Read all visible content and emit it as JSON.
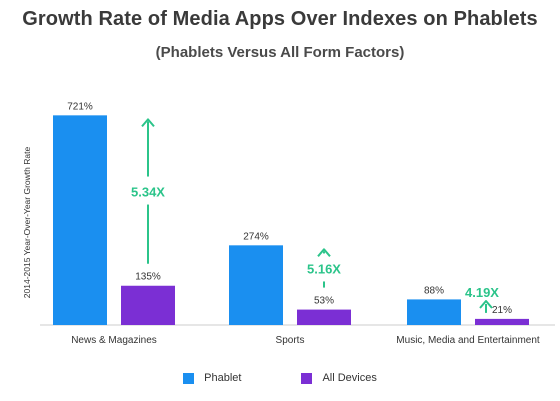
{
  "chart_data": {
    "type": "bar",
    "title": "Growth Rate of Media Apps Over Indexes on Phablets",
    "subtitle": "(Phablets Versus All Form Factors)",
    "ylabel": "2014-2015 Year-Over-Year Growth Rate",
    "xlabel": "",
    "ylim": [
      0,
      760
    ],
    "grid": false,
    "legend_position": "bottom",
    "categories": [
      "News & Magazines",
      "Sports",
      "Music, Media and Entertainment"
    ],
    "series": [
      {
        "name": "Phablet",
        "color": "#1a8ff0",
        "values": [
          721,
          274,
          88
        ],
        "labels": [
          "721%",
          "274%",
          "88%"
        ]
      },
      {
        "name": "All Devices",
        "color": "#7b2fd4",
        "values": [
          135,
          53,
          21
        ],
        "labels": [
          "135%",
          "53%",
          "21%"
        ]
      }
    ],
    "annotations": [
      "5.34X",
      "5.16X",
      "4.19X"
    ],
    "annotation_color": "#2bc48a"
  }
}
